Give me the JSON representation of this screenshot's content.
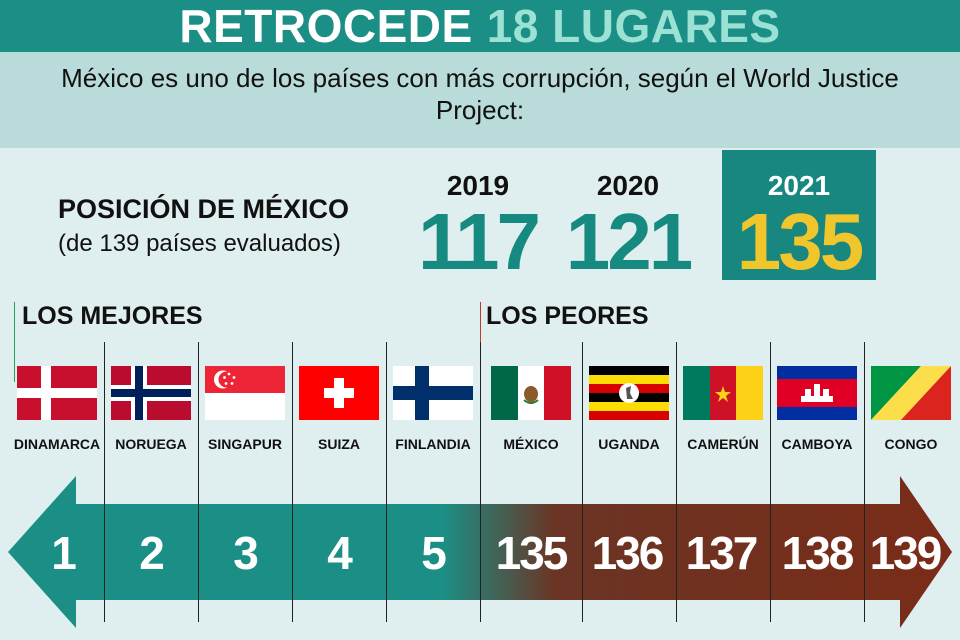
{
  "header": {
    "title_main": "RETROCEDE",
    "title_accent": "18 LUGARES",
    "subtitle": "México es uno de los países con más corrupción, según el World Justice Project:"
  },
  "position": {
    "title": "POSICIÓN DE MÉXICO",
    "subtitle": "(de 139 países evaluados)",
    "years": [
      {
        "year": "2019",
        "value": "117"
      },
      {
        "year": "2020",
        "value": "121"
      },
      {
        "year": "2021",
        "value": "135"
      }
    ]
  },
  "ranking": {
    "best_label": "LOS MEJORES",
    "worst_label": "LOS PEORES",
    "countries": [
      {
        "name": "DINAMARCA",
        "rank": "1",
        "flag": "denmark-flag"
      },
      {
        "name": "NORUEGA",
        "rank": "2",
        "flag": "norway-flag"
      },
      {
        "name": "SINGAPUR",
        "rank": "3",
        "flag": "singapore-flag"
      },
      {
        "name": "SUIZA",
        "rank": "4",
        "flag": "switzerland-flag"
      },
      {
        "name": "FINLANDIA",
        "rank": "5",
        "flag": "finland-flag"
      },
      {
        "name": "MÉXICO",
        "rank": "135",
        "flag": "mexico-flag"
      },
      {
        "name": "UGANDA",
        "rank": "136",
        "flag": "uganda-flag"
      },
      {
        "name": "CAMERÚN",
        "rank": "137",
        "flag": "cameroon-flag"
      },
      {
        "name": "CAMBOYA",
        "rank": "138",
        "flag": "cambodia-flag"
      },
      {
        "name": "CONGO",
        "rank": "139",
        "flag": "congo-flag"
      }
    ]
  },
  "colors": {
    "teal": "#1b8f86",
    "teal_dark": "#17877f",
    "brown": "#7a2c18",
    "gold": "#f1c62c"
  }
}
